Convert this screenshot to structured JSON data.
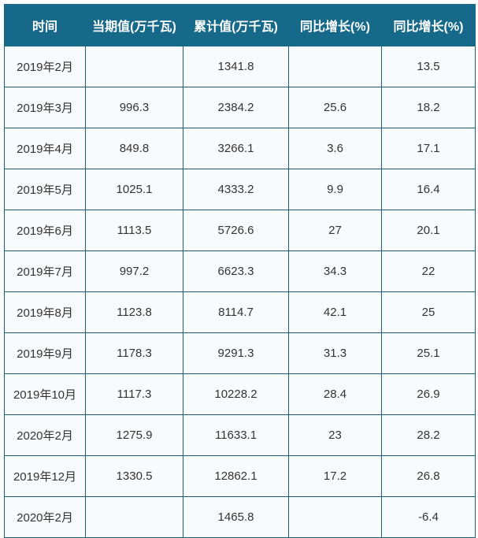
{
  "header": [
    "时间",
    "当期值(万千瓦)",
    "累计值(万千瓦)",
    "同比增长(%)",
    "同比增长(%)"
  ],
  "rows": [
    [
      "2019年2月",
      "",
      "1341.8",
      "",
      "13.5"
    ],
    [
      "2019年3月",
      "996.3",
      "2384.2",
      "25.6",
      "18.2"
    ],
    [
      "2019年4月",
      "849.8",
      "3266.1",
      "3.6",
      "17.1"
    ],
    [
      "2019年5月",
      "1025.1",
      "4333.2",
      "9.9",
      "16.4"
    ],
    [
      "2019年6月",
      "1113.5",
      "5726.6",
      "27",
      "20.1"
    ],
    [
      "2019年7月",
      "997.2",
      "6623.3",
      "34.3",
      "22"
    ],
    [
      "2019年8月",
      "1123.8",
      "8114.7",
      "42.1",
      "25"
    ],
    [
      "2019年9月",
      "1178.3",
      "9291.3",
      "31.3",
      "25.1"
    ],
    [
      "2019年10月",
      "1117.3",
      "10228.2",
      "28.4",
      "26.9"
    ],
    [
      "2020年2月",
      "1275.9",
      "11633.1",
      "23",
      "28.2"
    ],
    [
      "2019年12月",
      "1330.5",
      "12862.1",
      "17.2",
      "26.8"
    ],
    [
      "2020年2月",
      "",
      "1465.8",
      "",
      "-6.4"
    ]
  ],
  "colors": {
    "header_bg": "#17698a",
    "border": "#1c5d78"
  }
}
